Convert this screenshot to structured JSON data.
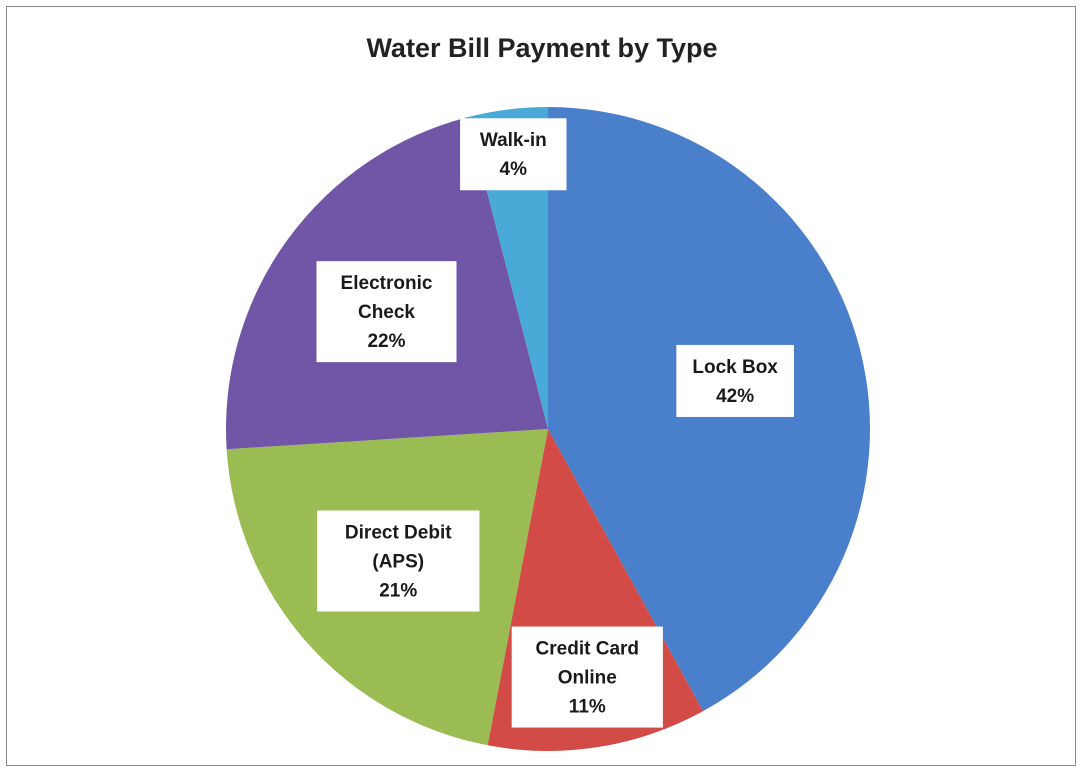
{
  "chart_data": {
    "type": "pie",
    "title": "Water Bill Payment by Type",
    "slices": [
      {
        "label_lines": [
          "Lock Box"
        ],
        "value": 42,
        "value_label": "42%",
        "color": "#4a7fcb"
      },
      {
        "label_lines": [
          "Credit Card",
          "Online"
        ],
        "value": 11,
        "value_label": "11%",
        "color": "#d24b47"
      },
      {
        "label_lines": [
          "Direct Debit",
          "(APS)"
        ],
        "value": 21,
        "value_label": "21%",
        "color": "#9bbb53"
      },
      {
        "label_lines": [
          "Electronic",
          "Check"
        ],
        "value": 22,
        "value_label": "22%",
        "color": "#7156a7"
      },
      {
        "label_lines": [
          "Walk-in"
        ],
        "value": 4,
        "value_label": "4%",
        "color": "#4aaad7"
      }
    ],
    "start_angle": "12 o'clock",
    "direction": "clockwise",
    "legend": "none",
    "data_labels": "inside, category name and percentage"
  }
}
